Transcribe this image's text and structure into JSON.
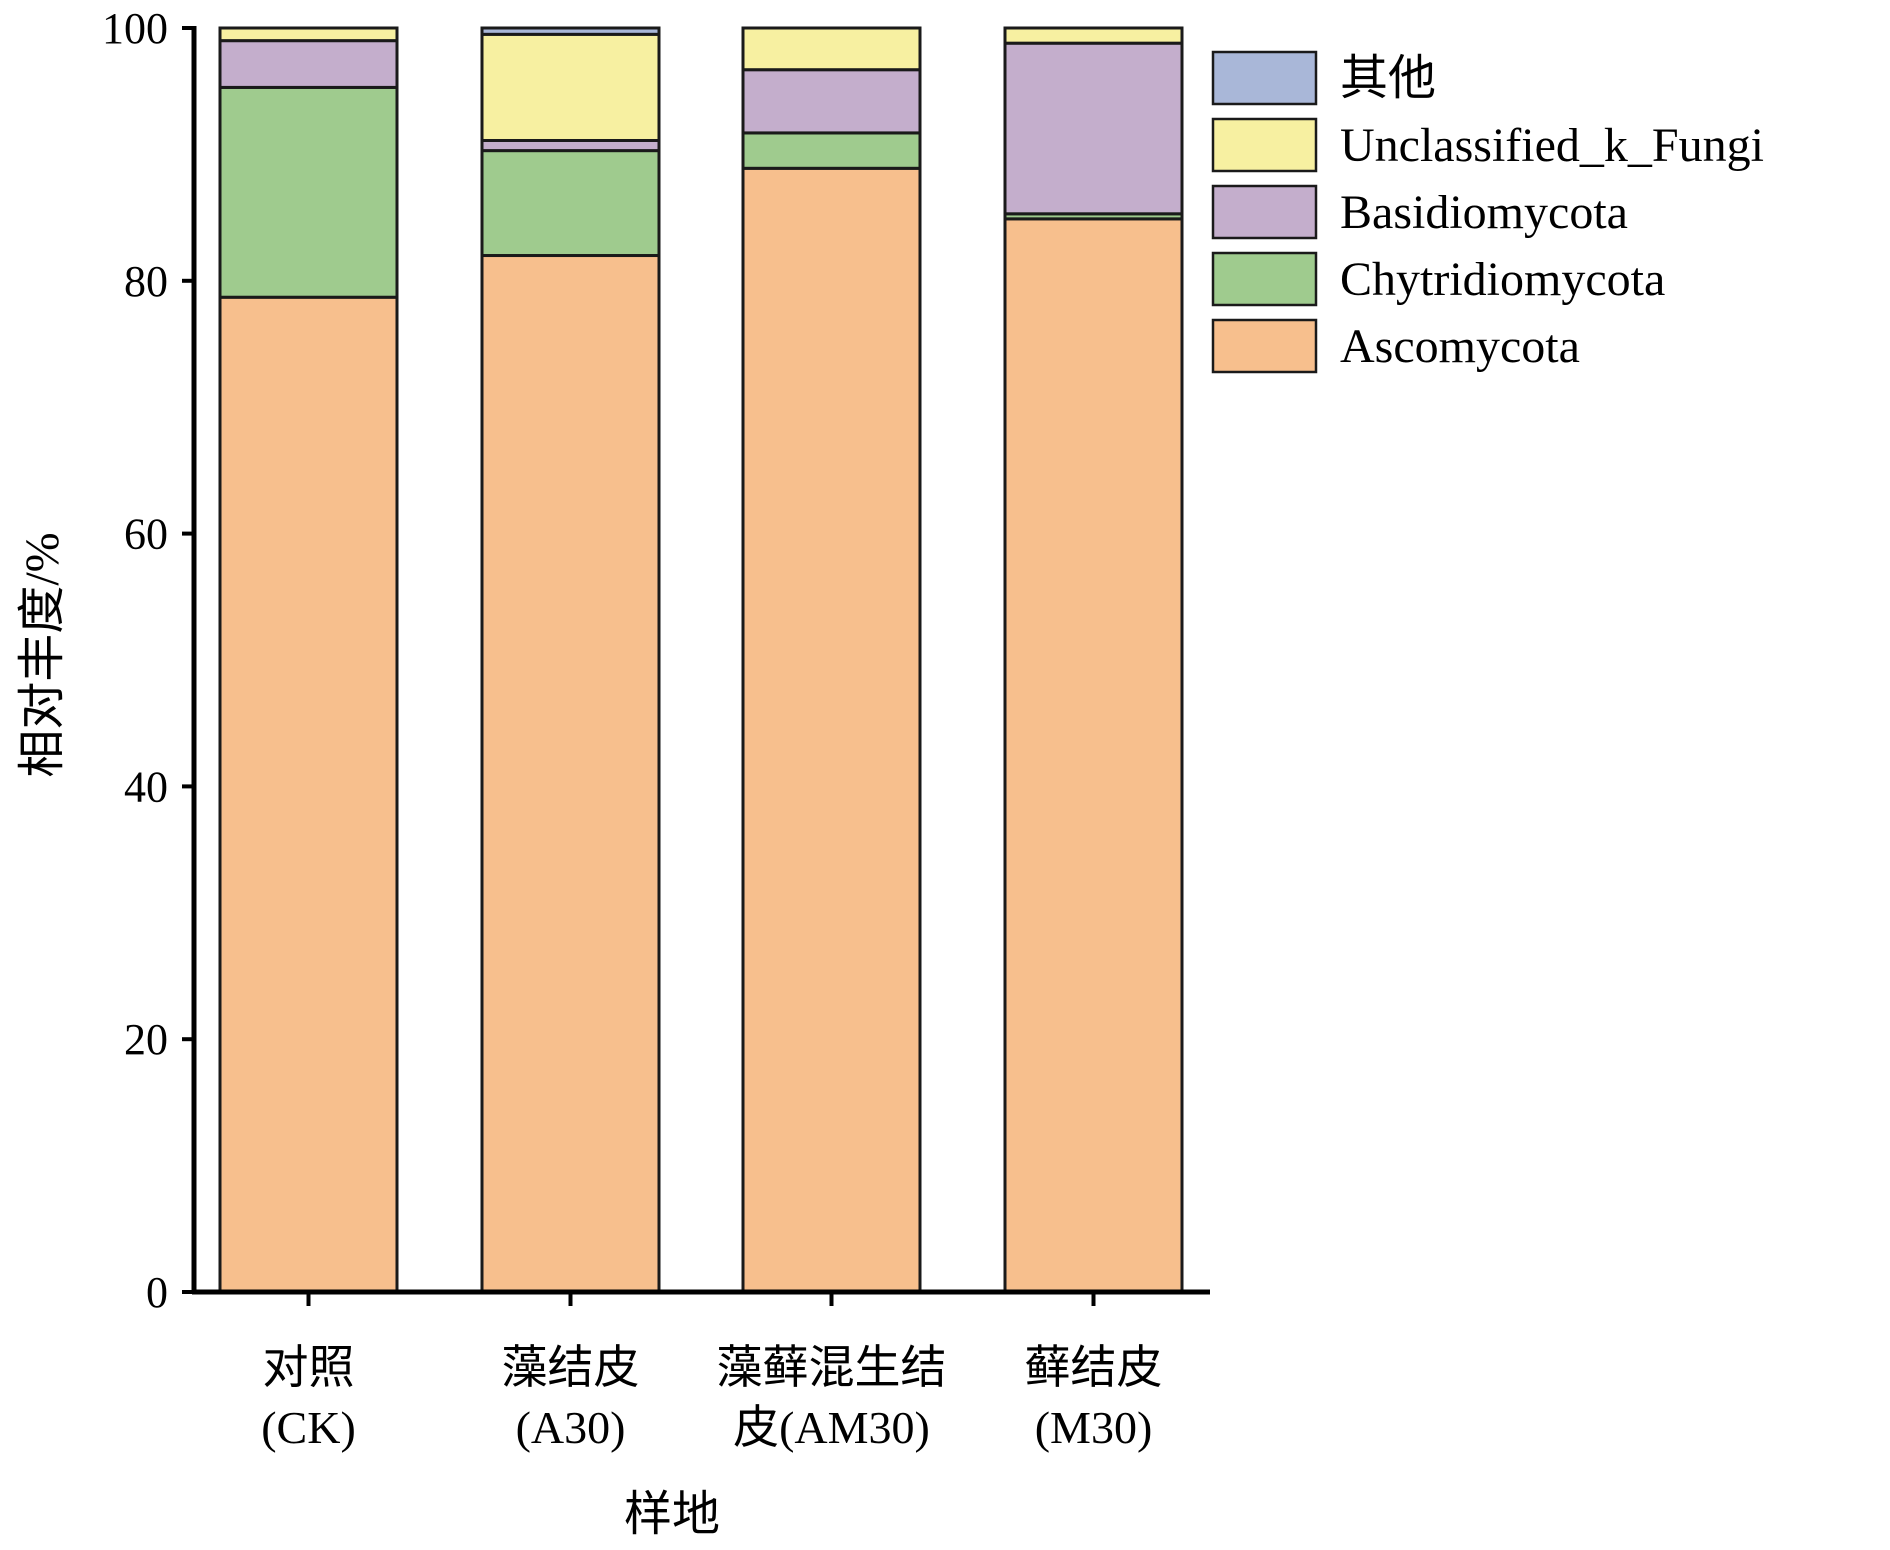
{
  "chart_data": {
    "type": "bar",
    "stacked": true,
    "categories": [
      [
        "对照",
        "(CK)"
      ],
      [
        "藻结皮",
        "(A30)"
      ],
      [
        "藻藓混生结",
        "皮(AM30)"
      ],
      [
        "藓结皮",
        "(M30)"
      ]
    ],
    "series": [
      {
        "name": "Ascomycota",
        "color": "#F7BF8D",
        "values": [
          78.7,
          82.0,
          88.9,
          84.9
        ]
      },
      {
        "name": "Chytridiomycota",
        "color": "#9FCB8E",
        "values": [
          16.6,
          8.3,
          2.8,
          0.4
        ]
      },
      {
        "name": "Basidiomycota",
        "color": "#C4AECC",
        "values": [
          3.7,
          0.8,
          5.0,
          13.5
        ]
      },
      {
        "name": "Unclassified_k_Fungi",
        "color": "#F7F0A1",
        "values": [
          1.0,
          8.4,
          3.3,
          1.2
        ]
      },
      {
        "name": "其他",
        "color": "#A9B7D8",
        "values": [
          0.0,
          0.5,
          0.0,
          0.0
        ]
      }
    ],
    "legend_order": [
      "其他",
      "Unclassified_k_Fungi",
      "Basidiomycota",
      "Chytridiomycota",
      "Ascomycota"
    ],
    "ylim": [
      0,
      100
    ],
    "yticks": [
      "0",
      "20",
      "40",
      "60",
      "80",
      "100"
    ],
    "xlabel": "样地",
    "ylabel": "相对丰度/%",
    "grid": false,
    "legend_position": "top-right"
  }
}
